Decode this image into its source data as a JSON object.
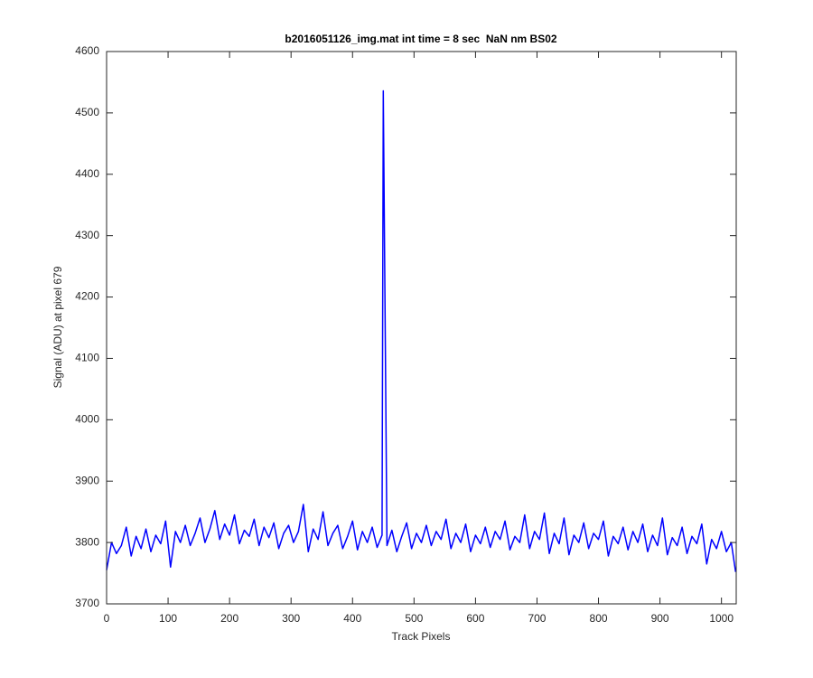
{
  "chart_data": {
    "type": "line",
    "title": "b2016051126_img.mat int time = 8 sec  NaN nm BS02",
    "x_label": "Track Pixels",
    "y_label": "Signal (ADU) at pixel 679",
    "xlim": [
      0,
      1024
    ],
    "ylim": [
      3700,
      4600
    ],
    "xticks": [
      0,
      100,
      200,
      300,
      400,
      500,
      600,
      700,
      800,
      900,
      1000
    ],
    "yticks": [
      3700,
      3800,
      3900,
      4000,
      4100,
      4200,
      4300,
      4400,
      4500,
      4600
    ],
    "series": [
      {
        "color": "#0000ff",
        "x": [
          0,
          8,
          16,
          24,
          32,
          40,
          48,
          56,
          64,
          72,
          80,
          88,
          96,
          104,
          112,
          120,
          128,
          136,
          144,
          152,
          160,
          168,
          176,
          184,
          192,
          200,
          208,
          216,
          224,
          232,
          240,
          248,
          256,
          264,
          272,
          280,
          288,
          296,
          304,
          312,
          320,
          328,
          336,
          344,
          352,
          360,
          368,
          376,
          384,
          392,
          400,
          408,
          416,
          424,
          432,
          440,
          448,
          450,
          456,
          464,
          472,
          480,
          488,
          496,
          504,
          512,
          520,
          528,
          536,
          544,
          552,
          560,
          568,
          576,
          584,
          592,
          600,
          608,
          616,
          624,
          632,
          640,
          648,
          656,
          664,
          672,
          680,
          688,
          696,
          704,
          712,
          720,
          728,
          736,
          744,
          752,
          760,
          768,
          776,
          784,
          792,
          800,
          808,
          816,
          824,
          832,
          840,
          848,
          856,
          864,
          872,
          880,
          888,
          896,
          904,
          912,
          920,
          928,
          936,
          944,
          952,
          960,
          968,
          976,
          984,
          992,
          1000,
          1008,
          1016,
          1023
        ],
        "values": [
          3755,
          3800,
          3782,
          3795,
          3825,
          3778,
          3810,
          3790,
          3822,
          3785,
          3812,
          3798,
          3835,
          3760,
          3818,
          3800,
          3828,
          3795,
          3815,
          3840,
          3800,
          3822,
          3852,
          3805,
          3830,
          3812,
          3845,
          3798,
          3820,
          3810,
          3838,
          3795,
          3825,
          3808,
          3832,
          3790,
          3815,
          3828,
          3800,
          3818,
          3862,
          3785,
          3822,
          3805,
          3850,
          3795,
          3815,
          3828,
          3790,
          3810,
          3835,
          3788,
          3818,
          3800,
          3825,
          3792,
          3812,
          4536,
          3795,
          3820,
          3785,
          3810,
          3832,
          3790,
          3815,
          3800,
          3828,
          3795,
          3818,
          3805,
          3838,
          3790,
          3815,
          3800,
          3830,
          3785,
          3812,
          3798,
          3825,
          3792,
          3818,
          3805,
          3835,
          3788,
          3810,
          3800,
          3845,
          3790,
          3818,
          3805,
          3848,
          3782,
          3815,
          3798,
          3840,
          3780,
          3812,
          3800,
          3832,
          3790,
          3815,
          3805,
          3835,
          3778,
          3810,
          3798,
          3825,
          3788,
          3818,
          3800,
          3830,
          3785,
          3812,
          3795,
          3840,
          3780,
          3808,
          3795,
          3825,
          3782,
          3810,
          3798,
          3830,
          3765,
          3805,
          3790,
          3818,
          3785,
          3800,
          3752
        ]
      }
    ]
  }
}
